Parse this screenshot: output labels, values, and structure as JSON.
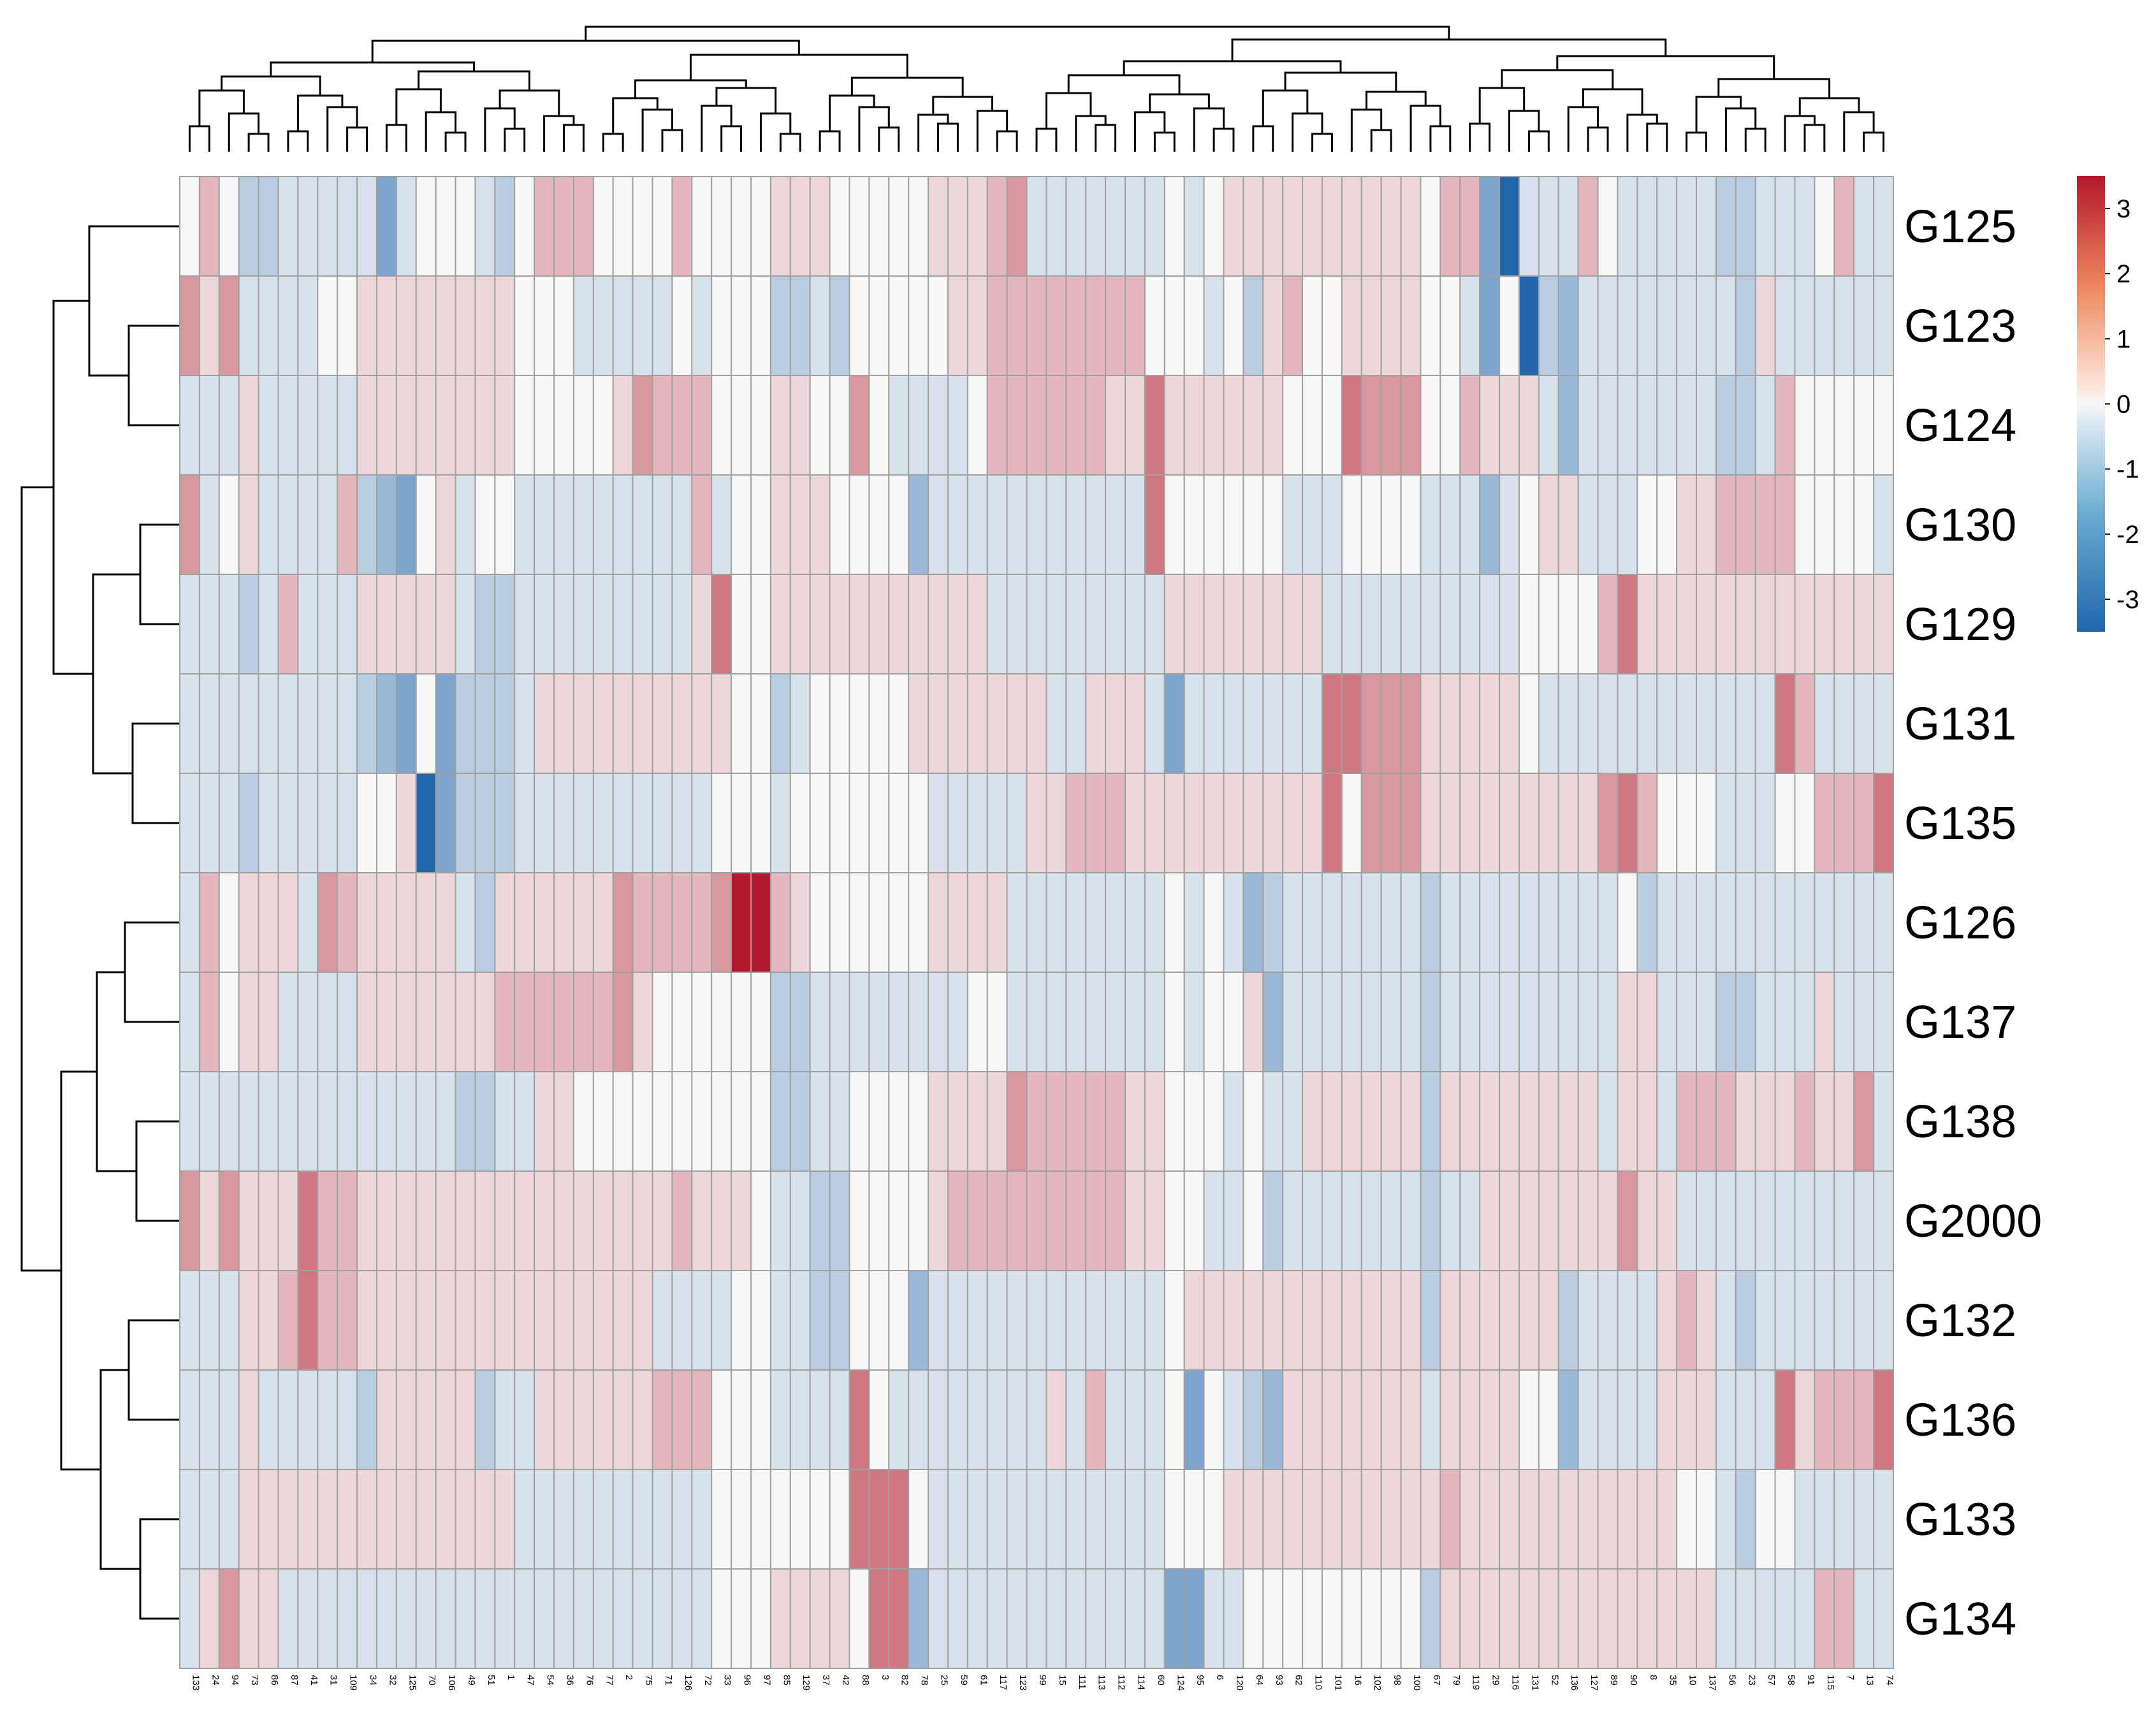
{
  "chart_data": {
    "type": "heatmap",
    "title": "",
    "rows": [
      "G125",
      "G123",
      "G124",
      "G130",
      "G129",
      "G131",
      "G135",
      "G126",
      "G137",
      "G138",
      "G2000",
      "G132",
      "G136",
      "G133",
      "G134"
    ],
    "columns": [
      "133",
      "24",
      "94",
      "73",
      "86",
      "87",
      "41",
      "31",
      "109",
      "34",
      "32",
      "125",
      "70",
      "106",
      "49",
      "51",
      "1",
      "47",
      "54",
      "36",
      "76",
      "77",
      "2",
      "75",
      "71",
      "126",
      "72",
      "33",
      "96",
      "97",
      "85",
      "129",
      "37",
      "42",
      "88",
      "3",
      "82",
      "78",
      "25",
      "59",
      "61",
      "117",
      "123",
      "99",
      "15",
      "111",
      "113",
      "112",
      "114",
      "60",
      "124",
      "95",
      "6",
      "120",
      "64",
      "93",
      "62",
      "110",
      "101",
      "16",
      "102",
      "98",
      "100",
      "67",
      "79",
      "119",
      "29",
      "116",
      "131",
      "52",
      "136",
      "127",
      "89",
      "90",
      "8",
      "35",
      "10",
      "137",
      "56",
      "23",
      "57",
      "58",
      "91",
      "115",
      "7",
      "13",
      "74"
    ],
    "values": [
      [
        0,
        1,
        0,
        -1,
        -1,
        -0.5,
        -0.5,
        -0.5,
        -0.5,
        -0.5,
        -2,
        -0.5,
        0,
        0,
        0,
        -0.5,
        -1,
        0,
        1,
        1,
        1,
        0,
        0,
        0,
        0,
        1,
        0,
        0,
        0,
        0,
        0.5,
        0.5,
        0.5,
        0,
        0,
        0,
        0,
        0,
        0.5,
        0.5,
        0.5,
        1,
        1.5,
        -0.5,
        -0.5,
        -0.5,
        -0.5,
        -0.5,
        -0.5,
        -0.5,
        0,
        -0.5,
        0,
        0.5,
        0.5,
        0.5,
        0.5,
        0.5,
        0.5,
        0.5,
        0.5,
        0.5,
        0.5,
        0,
        1,
        1,
        -2,
        -3.5,
        -0.5,
        -0.5,
        -0.5,
        1,
        0,
        -0.5,
        -0.5,
        -0.5,
        -0.5,
        -0.5,
        -1,
        -1,
        -0.5,
        -0.5,
        -0.5,
        0,
        1,
        -0.5,
        -0.5
      ],
      [
        1.5,
        0.5,
        1.5,
        -0.5,
        -0.5,
        -0.5,
        -0.5,
        0,
        0,
        0.5,
        0.5,
        0.5,
        0.5,
        0.5,
        0.5,
        0.5,
        0.5,
        0,
        0,
        0,
        -0.5,
        -0.5,
        -0.5,
        -0.5,
        -0.5,
        0,
        -0.5,
        0,
        0,
        0,
        -1,
        -1,
        -0.5,
        -1,
        0,
        0,
        0,
        0,
        0,
        0.5,
        0.5,
        1,
        1,
        1,
        1,
        1,
        1,
        1,
        1,
        0,
        0,
        0,
        -0.5,
        0,
        -1,
        0.5,
        1,
        0,
        0,
        0.5,
        0.5,
        0.5,
        0.5,
        0,
        0,
        -0.5,
        -2,
        0,
        -3.5,
        -1,
        -1.5,
        -0.5,
        -0.5,
        -0.5,
        -0.5,
        -0.5,
        -0.5,
        -0.5,
        -0.5,
        -1,
        0.5,
        -0.5,
        -0.5,
        -0.5,
        -0.5,
        -0.5,
        -0.5
      ],
      [
        -0.5,
        -0.5,
        -0.5,
        0.5,
        -0.5,
        -0.5,
        -0.5,
        -0.5,
        -0.5,
        0.5,
        0.5,
        0.5,
        0.5,
        0.5,
        0.5,
        0.5,
        0.5,
        0,
        0,
        0,
        0,
        0,
        0.5,
        1.5,
        1,
        1,
        1,
        0,
        0,
        0,
        0.5,
        0.5,
        0,
        0,
        1.5,
        0,
        -0.5,
        -0.5,
        -0.5,
        -0.5,
        0,
        1,
        1,
        1,
        1,
        1,
        1,
        0.5,
        0.5,
        2,
        0.5,
        0.5,
        0.5,
        0.5,
        0.5,
        0.5,
        0,
        0,
        0,
        2,
        1.5,
        1.5,
        1.5,
        0,
        0,
        1,
        0.5,
        0.5,
        0.5,
        -0.5,
        -1.5,
        -0.5,
        -0.5,
        -0.5,
        -0.5,
        -0.5,
        -0.5,
        -0.5,
        -1,
        -1,
        -0.5,
        1,
        0,
        0,
        0,
        0,
        0
      ],
      [
        1.5,
        -0.5,
        0,
        0.5,
        -0.5,
        -0.5,
        -0.5,
        -0.5,
        1,
        -1,
        -1.5,
        -2,
        0,
        0.5,
        -0.5,
        0,
        0,
        -0.5,
        -0.5,
        -0.5,
        -0.5,
        -0.5,
        -0.5,
        -0.5,
        -0.5,
        -0.5,
        1,
        -0.5,
        0,
        0,
        0.5,
        0.5,
        0.5,
        0,
        0,
        0,
        0,
        -1.5,
        -0.5,
        -0.5,
        -0.5,
        -0.5,
        -0.5,
        -0.5,
        -0.5,
        -0.5,
        -0.5,
        -0.5,
        -0.5,
        2,
        0,
        0,
        0,
        0,
        0,
        0,
        -0.5,
        -0.5,
        -0.5,
        0,
        0,
        0,
        0,
        -0.5,
        -0.5,
        -0.5,
        -1.5,
        -0.5,
        0,
        0.5,
        0.5,
        -0.5,
        -0.5,
        -0.5,
        0,
        0,
        0.5,
        0.5,
        1,
        1,
        1,
        1,
        0,
        0,
        0,
        0,
        -0.5
      ],
      [
        -0.5,
        -0.5,
        -0.5,
        -1,
        -0.5,
        1,
        -0.5,
        -0.5,
        -0.5,
        0.5,
        0.5,
        0.5,
        0.5,
        0.5,
        -0.5,
        -1,
        -1,
        -0.5,
        -0.5,
        -0.5,
        -0.5,
        -0.5,
        -0.5,
        -0.5,
        -0.5,
        -0.5,
        0.5,
        2,
        0,
        0,
        0.5,
        0.5,
        0.5,
        0.5,
        0.5,
        0.5,
        0.5,
        0.5,
        0.5,
        0.5,
        0.5,
        -0.5,
        -0.5,
        -0.5,
        -0.5,
        -0.5,
        -0.5,
        -0.5,
        -0.5,
        -0.5,
        0.5,
        0.5,
        0.5,
        0.5,
        0.5,
        0.5,
        0.5,
        0.5,
        -0.5,
        -0.5,
        -0.5,
        -0.5,
        -0.5,
        -0.5,
        -0.5,
        -0.5,
        -0.5,
        -0.5,
        0,
        0,
        0,
        0,
        1,
        2,
        0.5,
        0.5,
        0.5,
        0.5,
        0.5,
        0.5,
        0.5,
        0.5,
        0.5,
        0.5,
        0.5,
        0.5,
        0.5
      ],
      [
        -0.5,
        -0.5,
        -0.5,
        -0.5,
        -0.5,
        -0.5,
        -0.5,
        -0.5,
        -0.5,
        -1,
        -1.5,
        -2,
        0,
        -2,
        -1,
        -1,
        -1,
        -0.5,
        0.5,
        0.5,
        0.5,
        0.5,
        0.5,
        0.5,
        0.5,
        0.5,
        0.5,
        0.5,
        0,
        0,
        -1,
        -0.5,
        0,
        0,
        0,
        0,
        0,
        0.5,
        0.5,
        0.5,
        0.5,
        0.5,
        0.5,
        0.5,
        -0.5,
        -0.5,
        0.5,
        0.5,
        0.5,
        -0.5,
        -2,
        -0.5,
        -0.5,
        -0.5,
        -0.5,
        -0.5,
        -0.5,
        -0.5,
        2,
        2,
        1.5,
        1.5,
        1.5,
        0.5,
        0.5,
        0.5,
        0.5,
        0.5,
        0,
        -0.5,
        -0.5,
        -0.5,
        -0.5,
        -0.5,
        -0.5,
        -0.5,
        -0.5,
        -0.5,
        -0.5,
        -0.5,
        -0.5,
        2,
        1,
        -0.5,
        -0.5,
        -0.5,
        -0.5
      ],
      [
        -0.5,
        -0.5,
        -0.5,
        -1,
        -0.5,
        -0.5,
        -0.5,
        -0.5,
        -0.5,
        0,
        0,
        0.5,
        -3.5,
        -2,
        -1,
        -1,
        -1,
        -0.5,
        -0.5,
        -0.5,
        -0.5,
        -0.5,
        -0.5,
        -0.5,
        -0.5,
        -0.5,
        -0.5,
        0,
        0,
        0,
        -0.5,
        0,
        0,
        0,
        0,
        0,
        0,
        0,
        -0.5,
        -0.5,
        -0.5,
        -0.5,
        -0.5,
        0.5,
        0.5,
        1,
        1,
        1,
        0.5,
        0.5,
        0.5,
        0.5,
        0.5,
        0.5,
        0.5,
        0.5,
        0.5,
        0.5,
        2,
        0,
        1.5,
        1.5,
        1.5,
        0.5,
        0.5,
        0.5,
        0.5,
        0.5,
        0.5,
        0.5,
        0.5,
        0.5,
        1.5,
        2,
        1,
        0,
        0,
        0,
        -0.5,
        -0.5,
        -0.5,
        0,
        0,
        1,
        1,
        1,
        2
      ],
      [
        -0.5,
        1,
        0,
        0.5,
        0.5,
        0.5,
        -0.5,
        1.5,
        1,
        0.5,
        0.5,
        0.5,
        0.5,
        0.5,
        -0.5,
        -1,
        0.5,
        0.5,
        0.5,
        0.5,
        0.5,
        0.5,
        1.5,
        1,
        1,
        1,
        1,
        1.5,
        3.5,
        3.5,
        1,
        0.5,
        0,
        0,
        0,
        0,
        0,
        0,
        0.5,
        0.5,
        0.5,
        0.5,
        -0.5,
        -0.5,
        -0.5,
        -0.5,
        -0.5,
        -0.5,
        -0.5,
        -0.5,
        0,
        -0.5,
        0,
        -0.5,
        -1.5,
        -1,
        -0.5,
        -0.5,
        -0.5,
        -0.5,
        -0.5,
        -0.5,
        -0.5,
        -1,
        -0.5,
        -0.5,
        -0.5,
        -0.5,
        -0.5,
        -0.5,
        -0.5,
        -0.5,
        -0.5,
        0,
        -1,
        -0.5,
        -0.5,
        -0.5,
        -0.5,
        -0.5,
        -0.5,
        -0.5,
        -0.5,
        -0.5,
        -0.5,
        -0.5,
        -0.5
      ],
      [
        -0.5,
        1,
        0,
        0.5,
        0.5,
        -0.5,
        -0.5,
        -0.5,
        -0.5,
        0.5,
        0.5,
        0.5,
        0.5,
        0.5,
        0.5,
        0.5,
        1,
        1,
        1,
        1,
        1,
        1,
        1.5,
        0.5,
        0,
        0,
        0,
        0,
        0,
        0,
        -1,
        -1,
        -0.5,
        -0.5,
        -0.5,
        -0.5,
        -0.5,
        -0.5,
        -0.5,
        -0.5,
        0,
        0,
        -0.5,
        -0.5,
        -0.5,
        -0.5,
        -0.5,
        -0.5,
        -0.5,
        -0.5,
        0,
        -0.5,
        0,
        0,
        0.5,
        -1.5,
        -0.5,
        -0.5,
        -0.5,
        -0.5,
        -0.5,
        -0.5,
        -0.5,
        -1,
        -0.5,
        -0.5,
        -0.5,
        -0.5,
        -0.5,
        -0.5,
        -0.5,
        -0.5,
        -0.5,
        0.5,
        0.5,
        -0.5,
        -0.5,
        -0.5,
        -1,
        -1,
        -0.5,
        -0.5,
        -0.5,
        0.5,
        -0.5,
        -0.5,
        -0.5
      ],
      [
        -0.5,
        -0.5,
        -0.5,
        -0.5,
        -0.5,
        -0.5,
        -0.5,
        -0.5,
        -0.5,
        -0.5,
        -0.5,
        -0.5,
        -0.5,
        -0.5,
        -1,
        -1,
        -0.5,
        -0.5,
        0.5,
        0.5,
        0,
        0,
        0,
        0,
        0,
        0,
        0,
        0,
        0,
        0,
        -1,
        -1,
        -0.5,
        -0.5,
        0,
        0,
        0,
        0,
        0.5,
        0.5,
        0.5,
        0.5,
        1.5,
        1,
        1,
        1,
        1,
        1,
        0.5,
        0.5,
        0,
        0,
        0,
        -0.5,
        0,
        -0.5,
        -0.5,
        0.5,
        0.5,
        0.5,
        0.5,
        0.5,
        0.5,
        -1,
        0.5,
        0.5,
        0.5,
        0.5,
        0.5,
        0.5,
        0.5,
        0.5,
        -0.5,
        0.5,
        0.5,
        -0.5,
        1,
        1,
        1,
        0.5,
        0.5,
        0.5,
        1,
        0.5,
        0.5,
        1.5,
        -0.5
      ],
      [
        1.5,
        0.5,
        1.5,
        0.5,
        0.5,
        0.5,
        2,
        1,
        1,
        0.5,
        0.5,
        0.5,
        0.5,
        0.5,
        0.5,
        0.5,
        0.5,
        0.5,
        0.5,
        0.5,
        0.5,
        0.5,
        0.5,
        0.5,
        0.5,
        1,
        0.5,
        0.5,
        0.5,
        0,
        -0.5,
        -0.5,
        -1,
        -1,
        0,
        0,
        0,
        0,
        0.5,
        1,
        1,
        1,
        1,
        1,
        1,
        1,
        1,
        1,
        0.5,
        0.5,
        0,
        0,
        -0.5,
        -0.5,
        0,
        -1,
        -0.5,
        -0.5,
        -0.5,
        -0.5,
        -0.5,
        -0.5,
        -0.5,
        -1,
        -0.5,
        -0.5,
        0.5,
        0.5,
        0.5,
        0.5,
        0.5,
        0.5,
        0.5,
        1.5,
        0.5,
        0.5,
        -0.5,
        -0.5,
        -0.5,
        -0.5,
        -0.5,
        -0.5,
        -0.5,
        -0.5,
        -0.5,
        -0.5,
        -0.5
      ],
      [
        -0.5,
        -0.5,
        -0.5,
        0.5,
        0.5,
        1,
        2,
        1,
        1,
        0.5,
        0.5,
        0.5,
        0.5,
        0.5,
        0.5,
        0.5,
        0.5,
        0.5,
        0.5,
        0.5,
        0.5,
        0.5,
        0.5,
        0.5,
        -0.5,
        -0.5,
        -0.5,
        -0.5,
        0,
        0,
        -0.5,
        -0.5,
        -1,
        -1,
        0,
        0,
        0,
        -1.5,
        -0.5,
        -0.5,
        -0.5,
        -0.5,
        -0.5,
        -0.5,
        -0.5,
        -0.5,
        -0.5,
        -0.5,
        -0.5,
        -0.5,
        0,
        0.5,
        0.5,
        0.5,
        0.5,
        0.5,
        0.5,
        0.5,
        0.5,
        0.5,
        0.5,
        0.5,
        0.5,
        -1,
        0.5,
        0.5,
        0.5,
        0.5,
        0.5,
        0.5,
        -1,
        -0.5,
        -0.5,
        -0.5,
        -0.5,
        0.5,
        1,
        0.5,
        -0.5,
        -1,
        -0.5,
        -0.5,
        -0.5,
        -0.5,
        -0.5,
        -0.5,
        -0.5
      ],
      [
        -0.5,
        -0.5,
        -0.5,
        0.5,
        -0.5,
        -0.5,
        -0.5,
        -0.5,
        -0.5,
        -1,
        0.5,
        0.5,
        0.5,
        0.5,
        0.5,
        -1,
        -0.5,
        -0.5,
        0.5,
        0.5,
        0.5,
        0.5,
        0.5,
        0.5,
        1,
        1,
        1,
        0,
        0,
        0,
        -0.5,
        -0.5,
        -0.5,
        -0.5,
        2,
        0,
        -0.5,
        -0.5,
        -0.5,
        -0.5,
        -0.5,
        -0.5,
        -0.5,
        -0.5,
        0.5,
        -0.5,
        1,
        -0.5,
        -0.5,
        -0.5,
        0,
        -2,
        0,
        -0.5,
        -1,
        -1.5,
        0.5,
        0.5,
        0.5,
        0.5,
        0.5,
        0.5,
        0.5,
        -0.5,
        0.5,
        0.5,
        0.5,
        0.5,
        0,
        0,
        -1.5,
        -0.5,
        -0.5,
        -0.5,
        -0.5,
        0.5,
        0.5,
        0.5,
        -0.5,
        -0.5,
        -0.5,
        2,
        0.5,
        1,
        1,
        1,
        2
      ],
      [
        -0.5,
        -0.5,
        -0.5,
        0.5,
        0.5,
        0.5,
        0.5,
        0.5,
        0.5,
        0.5,
        0.5,
        0.5,
        0.5,
        0.5,
        0.5,
        0.5,
        0.5,
        -0.5,
        -0.5,
        -0.5,
        -0.5,
        -0.5,
        -0.5,
        -0.5,
        -0.5,
        -0.5,
        -0.5,
        0,
        0,
        0,
        0,
        0,
        0,
        0,
        2,
        2,
        2,
        0,
        -0.5,
        -0.5,
        -0.5,
        -0.5,
        -0.5,
        -0.5,
        -0.5,
        -0.5,
        -0.5,
        -0.5,
        -0.5,
        -0.5,
        0,
        0,
        0,
        0.5,
        0.5,
        0.5,
        0.5,
        0.5,
        0.5,
        0.5,
        0.5,
        0.5,
        0.5,
        0.5,
        1,
        0.5,
        0.5,
        0.5,
        0.5,
        0.5,
        0.5,
        0.5,
        0.5,
        0.5,
        0.5,
        0.5,
        0,
        0,
        -0.5,
        -1,
        0,
        0,
        -0.5,
        -0.5,
        -0.5,
        -0.5,
        -0.5
      ],
      [
        -0.5,
        0.5,
        1.5,
        0.5,
        0.5,
        -0.5,
        -0.5,
        -0.5,
        -0.5,
        -0.5,
        -0.5,
        -0.5,
        -0.5,
        -0.5,
        -0.5,
        -0.5,
        -0.5,
        -0.5,
        -0.5,
        -0.5,
        -0.5,
        -0.5,
        -0.5,
        -0.5,
        -0.5,
        -0.5,
        -0.5,
        0,
        0,
        0,
        0.5,
        0.5,
        0.5,
        0.5,
        0,
        2,
        2,
        -1.5,
        -0.5,
        -0.5,
        -0.5,
        -0.5,
        -0.5,
        -0.5,
        -0.5,
        -0.5,
        -0.5,
        -0.5,
        -0.5,
        -0.5,
        -2,
        -2,
        -0.5,
        -0.5,
        0,
        0,
        0,
        0,
        0,
        0,
        0,
        0,
        0,
        -1,
        0.5,
        0.5,
        0.5,
        0.5,
        0.5,
        0.5,
        0.5,
        0.5,
        0.5,
        0.5,
        0.5,
        0.5,
        0.5,
        0.5,
        -0.5,
        -0.5,
        -0.5,
        -0.5,
        -0.5,
        1,
        1,
        -0.5,
        -0.5
      ]
    ],
    "color_scale": {
      "min": -3.5,
      "max": 3.5,
      "low": "#2166ac",
      "mid": "#f7f7f7",
      "high": "#b2182b"
    },
    "legend": {
      "position": "top-right",
      "ticks": [
        3,
        2,
        1,
        0,
        -1,
        -2,
        -3
      ],
      "tick_labels": [
        "3",
        "2",
        "1",
        "0",
        "-1",
        "-2",
        "-3"
      ]
    },
    "dendrograms": {
      "rows": true,
      "columns": true
    }
  }
}
